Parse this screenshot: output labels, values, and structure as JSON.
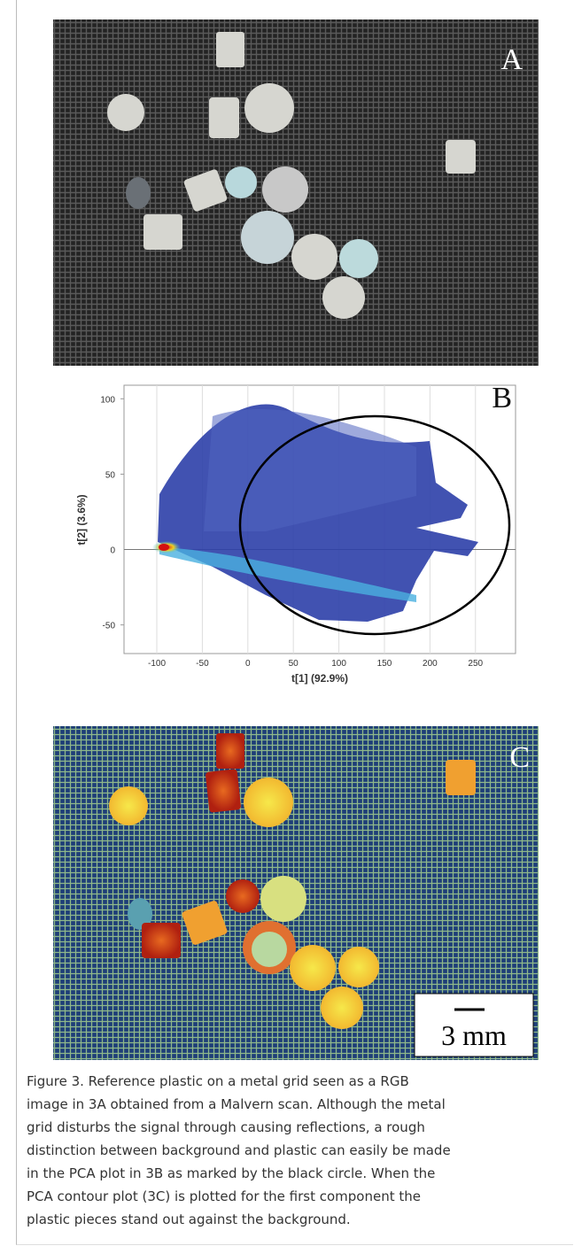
{
  "panel_a": {
    "label": "A"
  },
  "panel_b": {
    "label": "B",
    "xlabel": "t[1] (92.9%)",
    "ylabel": "t[2] (3.6%)",
    "xlim": [
      -136,
      294
    ],
    "ylim": [
      -69,
      109
    ],
    "xticks": [
      -100,
      -50,
      0,
      50,
      100,
      150,
      200,
      250
    ],
    "yticks": [
      -50,
      0,
      50,
      100
    ]
  },
  "panel_c": {
    "label": "C",
    "scale_bar": "3 mm"
  },
  "caption": [
    "Figure 3. Reference plastic on a metal grid seen as a RGB",
    "image in 3A obtained from a Malvern scan. Although the metal",
    "grid disturbs the signal through causing reflections, a rough",
    "distinction between background and plastic can easily be made",
    "in the PCA plot in 3B as marked by the black circle. When the",
    "PCA contour plot (3C) is plotted for the first component the",
    "plastic pieces stand out against the background."
  ]
}
